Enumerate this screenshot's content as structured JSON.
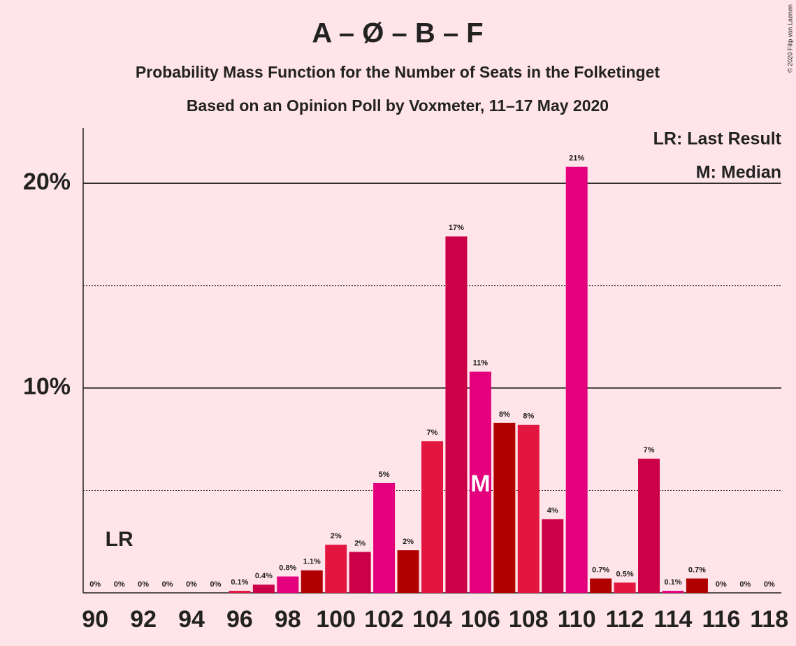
{
  "chart_data": {
    "type": "bar",
    "title": "A – Ø – B – F",
    "subtitle": "Probability Mass Function for the Number of Seats in the Folketinget",
    "subtitle2": "Based on an Opinion Poll by Voxmeter, 11–17 May 2020",
    "copyright": "© 2020 Filip van Laenen",
    "x": [
      90,
      91,
      92,
      93,
      94,
      95,
      96,
      97,
      98,
      99,
      100,
      101,
      102,
      103,
      104,
      105,
      106,
      107,
      108,
      109,
      110,
      111,
      112,
      113,
      114,
      115,
      116,
      117,
      118
    ],
    "values": [
      0,
      0,
      0,
      0,
      0,
      0,
      0.1,
      0.4,
      0.8,
      1.1,
      2.35,
      2.0,
      5.36,
      2.08,
      7.4,
      17.4,
      10.8,
      8.3,
      8.2,
      3.6,
      20.8,
      0.7,
      0.5,
      6.55,
      0.1,
      0.7,
      0,
      0,
      0
    ],
    "value_labels": [
      "0%",
      "0%",
      "0%",
      "0%",
      "0%",
      "0%",
      "0.1%",
      "0.4%",
      "0.8%",
      "1.1%",
      "2%",
      "2%",
      "5%",
      "2%",
      "7%",
      "17%",
      "11%",
      "8%",
      "8%",
      "4%",
      "21%",
      "0.7%",
      "0.5%",
      "7%",
      "0.1%",
      "0.7%",
      "0%",
      "0%",
      "0%"
    ],
    "colors": [
      "#e4007c",
      "#b00000",
      "#e3163f",
      "#cc0048",
      "#e4007c",
      "#b00000",
      "#e3163f",
      "#cc0048",
      "#e4007c",
      "#b00000",
      "#e3163f",
      "#cc0048",
      "#e4007c",
      "#b00000",
      "#e3163f",
      "#cc0048",
      "#e4007c",
      "#b00000",
      "#e3163f",
      "#cc0048",
      "#e4007c",
      "#b00000",
      "#e3163f",
      "#cc0048",
      "#e4007c",
      "#b00000",
      "#e3163f",
      "#cc0048",
      "#e4007c"
    ],
    "xlim": [
      89.5,
      118.5
    ],
    "xticks": [
      90,
      92,
      94,
      96,
      98,
      100,
      102,
      104,
      106,
      108,
      110,
      112,
      114,
      116,
      118
    ],
    "ylim": [
      0,
      22.7
    ],
    "yticks": [
      {
        "value": 10,
        "label": "10%"
      },
      {
        "value": 20,
        "label": "20%"
      }
    ],
    "minor_yticks": [
      5,
      15
    ],
    "grid": true,
    "annotations": [
      {
        "text": "LR",
        "x": 91
      },
      {
        "text": "M",
        "x": 106
      }
    ],
    "legend": [
      "LR: Last Result",
      "M: Median"
    ]
  }
}
